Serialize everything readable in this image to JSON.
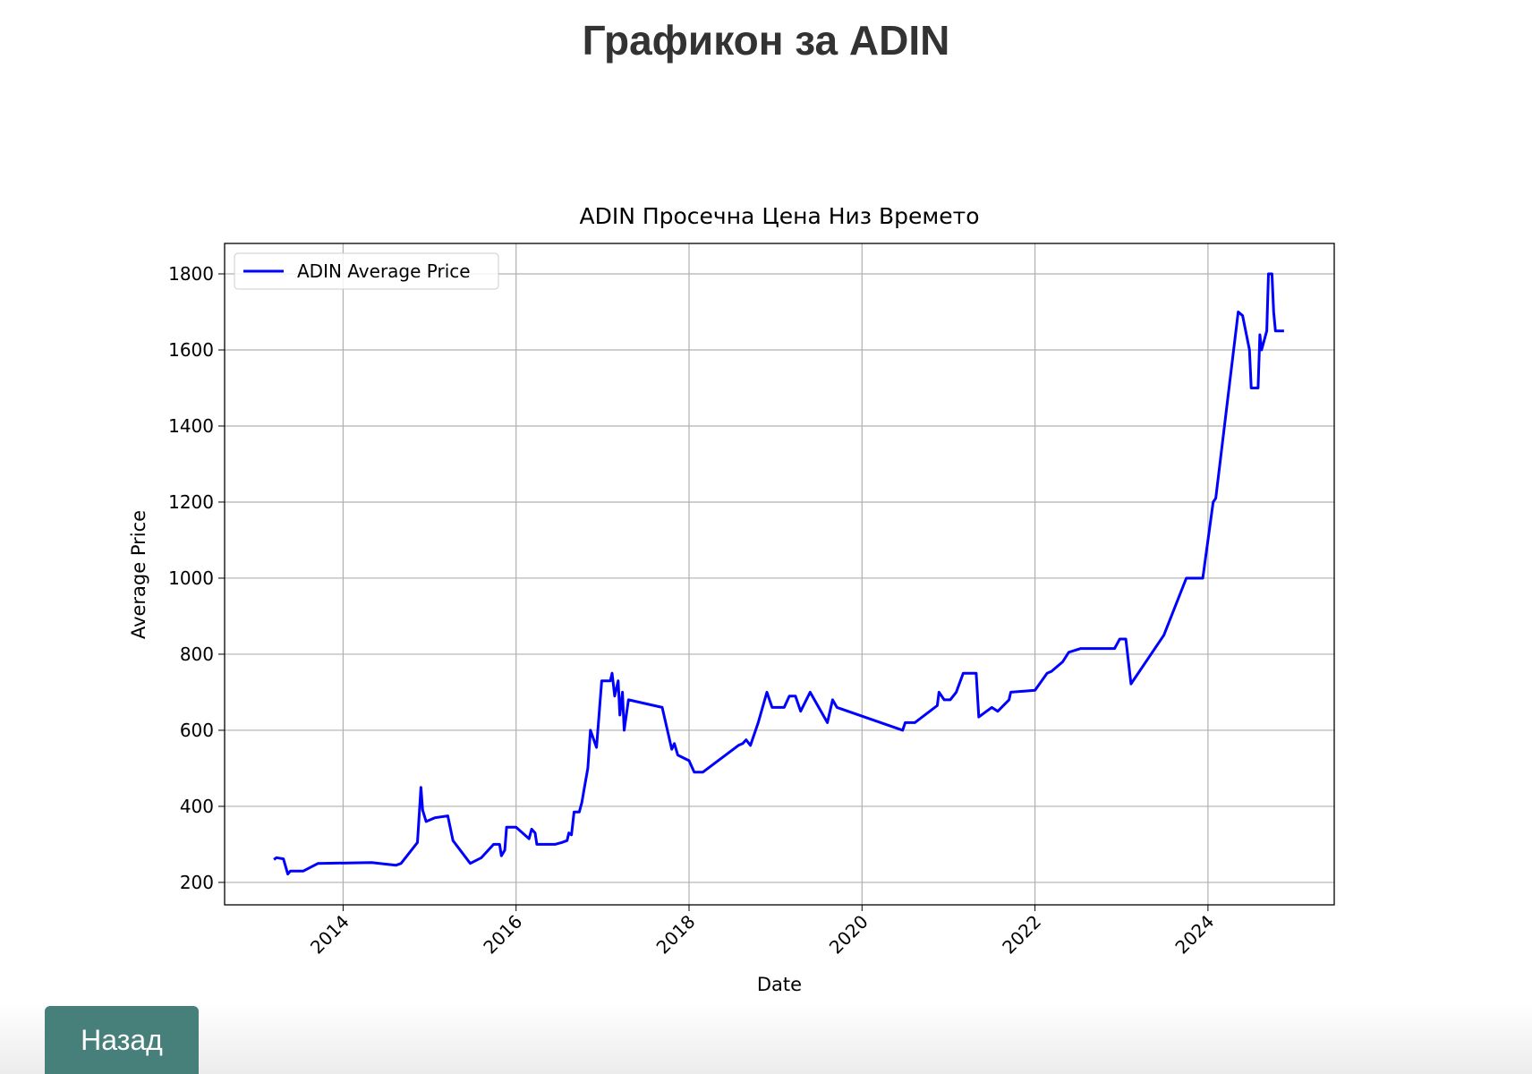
{
  "header": {
    "title": "Графикон за ADIN"
  },
  "chart_data": {
    "type": "line",
    "title": "ADIN Просечна Цена Низ Времето",
    "x_label": "Date",
    "y_label": "Average Price",
    "x": [
      2013.2,
      2013.23,
      2013.31,
      2013.36,
      2013.39,
      2013.54,
      2013.71,
      2014.33,
      2014.61,
      2014.67,
      2014.86,
      2014.9,
      2014.92,
      2014.96,
      2015.06,
      2015.21,
      2015.27,
      2015.47,
      2015.6,
      2015.74,
      2015.81,
      2015.83,
      2015.87,
      2015.89,
      2016.0,
      2016.15,
      2016.18,
      2016.22,
      2016.24,
      2016.45,
      2016.53,
      2016.59,
      2016.61,
      2016.64,
      2016.67,
      2016.73,
      2016.76,
      2016.79,
      2016.83,
      2016.86,
      2016.93,
      2016.99,
      2017.09,
      2017.11,
      2017.14,
      2017.18,
      2017.2,
      2017.23,
      2017.25,
      2017.3,
      2017.69,
      2017.8,
      2017.83,
      2017.87,
      2018.0,
      2018.06,
      2018.16,
      2018.57,
      2018.62,
      2018.66,
      2018.71,
      2018.8,
      2018.9,
      2018.96,
      2019.1,
      2019.16,
      2019.23,
      2019.29,
      2019.4,
      2019.6,
      2019.66,
      2019.71,
      2020.47,
      2020.5,
      2020.61,
      2020.87,
      2020.89,
      2020.95,
      2021.02,
      2021.09,
      2021.17,
      2021.32,
      2021.35,
      2021.5,
      2021.57,
      2021.7,
      2021.72,
      2022.0,
      2022.14,
      2022.19,
      2022.32,
      2022.39,
      2022.53,
      2022.92,
      2022.98,
      2023.05,
      2023.11,
      2023.49,
      2023.75,
      2023.94,
      2024.06,
      2024.09,
      2024.35,
      2024.4,
      2024.48,
      2024.5,
      2024.58,
      2024.6,
      2024.62,
      2024.68,
      2024.7,
      2024.74,
      2024.76,
      2024.78,
      2024.88
    ],
    "series": [
      {
        "name": "ADIN Average Price",
        "color": "#0000ff",
        "values": [
          260,
          265,
          262,
          222,
          230,
          230,
          250,
          252,
          245,
          250,
          305,
          450,
          390,
          360,
          370,
          375,
          310,
          250,
          265,
          300,
          300,
          270,
          285,
          345,
          345,
          315,
          340,
          330,
          300,
          300,
          305,
          310,
          330,
          325,
          385,
          385,
          410,
          450,
          500,
          600,
          555,
          730,
          730,
          750,
          690,
          730,
          640,
          700,
          600,
          680,
          660,
          550,
          565,
          535,
          520,
          490,
          490,
          560,
          565,
          575,
          560,
          620,
          700,
          660,
          660,
          690,
          690,
          650,
          700,
          620,
          680,
          660,
          600,
          620,
          620,
          665,
          700,
          680,
          680,
          700,
          750,
          750,
          635,
          660,
          650,
          680,
          700,
          705,
          750,
          755,
          780,
          805,
          815,
          815,
          840,
          840,
          722,
          850,
          1000,
          1000,
          1200,
          1210,
          1700,
          1690,
          1600,
          1500,
          1500,
          1640,
          1600,
          1650,
          1800,
          1800,
          1700,
          1650,
          1650
        ]
      }
    ],
    "xlim": [
      2012.63,
      2025.46
    ],
    "xticks": [
      2014,
      2016,
      2018,
      2020,
      2022,
      2024
    ],
    "ylim": [
      141,
      1880
    ],
    "yticks": [
      200,
      400,
      600,
      800,
      1000,
      1200,
      1400,
      1600,
      1800
    ],
    "grid": true,
    "legend": "upper left"
  },
  "button": {
    "label": "Назад"
  }
}
